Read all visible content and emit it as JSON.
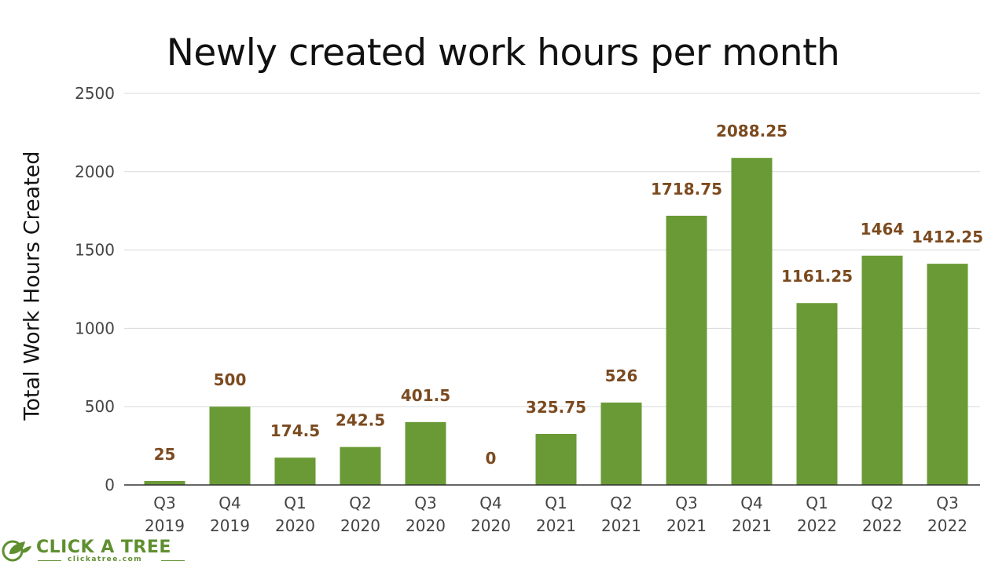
{
  "chart_data": {
    "type": "bar",
    "title": "Newly created work hours per month",
    "xlabel": "",
    "ylabel": "Total Work Hours Created",
    "categories": [
      [
        "Q3",
        "2019"
      ],
      [
        "Q4",
        "2019"
      ],
      [
        "Q1",
        "2020"
      ],
      [
        "Q2",
        "2020"
      ],
      [
        "Q3",
        "2020"
      ],
      [
        "Q4",
        "2020"
      ],
      [
        "Q1",
        "2021"
      ],
      [
        "Q2",
        "2021"
      ],
      [
        "Q3",
        "2021"
      ],
      [
        "Q4",
        "2021"
      ],
      [
        "Q1",
        "2022"
      ],
      [
        "Q2",
        "2022"
      ],
      [
        "Q3",
        "2022"
      ]
    ],
    "values": [
      25,
      500,
      174.5,
      242.5,
      401.5,
      0,
      325.75,
      526,
      1718.75,
      2088.25,
      1161.25,
      1464,
      1412.25
    ],
    "ylim": [
      0,
      2500
    ],
    "yticks": [
      0,
      500,
      1000,
      1500,
      2000,
      2500
    ],
    "grid": true,
    "legend": "none",
    "colors": {
      "bar": "#6a9a35",
      "data_label": "#7b4a1f",
      "grid": "#d9d9d9",
      "axis": "#333333",
      "tick_label": "#444444"
    }
  },
  "logo": {
    "name": "CLICK A TREE",
    "url": "clickatree.com",
    "color": "#5f8f2f",
    "icon": "leaf-head-icon"
  }
}
